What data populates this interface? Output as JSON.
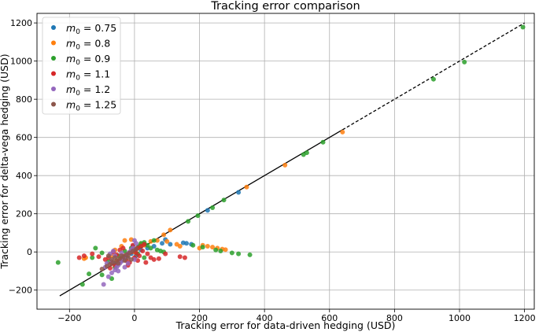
{
  "chart_data": {
    "type": "scatter",
    "title": "Tracking error comparison",
    "xlabel": "Tracking error for data-driven hedging (USD)",
    "ylabel": "Tracking error for delta-vega hedging (USD)",
    "xlim": [
      -300,
      1230
    ],
    "ylim": [
      -300,
      1250
    ],
    "xticks": [
      -200,
      0,
      200,
      400,
      600,
      800,
      1000,
      1200
    ],
    "yticks": [
      -200,
      0,
      200,
      400,
      600,
      800,
      1000,
      1200
    ],
    "grid": true,
    "legend_position": "top-left",
    "reference_line": {
      "x": [
        -230,
        1200
      ],
      "y": [
        -230,
        1200
      ],
      "style_solid_until": 640
    },
    "series": [
      {
        "name": "m0 = 0.75",
        "legend_sym": "m",
        "legend_sub": "0",
        "legend_val": "0.75",
        "color": "#1f77b4",
        "points": [
          [
            320,
            312
          ],
          [
            225,
            218
          ],
          [
            150,
            48
          ],
          [
            160,
            45
          ],
          [
            175,
            40
          ],
          [
            95,
            65
          ],
          [
            60,
            30
          ],
          [
            40,
            20
          ],
          [
            20,
            10
          ],
          [
            0,
            5
          ],
          [
            -10,
            -10
          ],
          [
            -20,
            -20
          ],
          [
            -30,
            -25
          ],
          [
            -40,
            -40
          ],
          [
            -50,
            -55
          ],
          [
            -60,
            -60
          ],
          [
            10,
            25
          ],
          [
            30,
            40
          ],
          [
            -5,
            30
          ],
          [
            5,
            -20
          ],
          [
            85,
            45
          ],
          [
            110,
            40
          ]
        ]
      },
      {
        "name": "m0 = 0.8",
        "legend_sym": "m",
        "legend_sub": "0",
        "legend_val": "0.8",
        "color": "#ff7f0e",
        "points": [
          [
            640,
            628
          ],
          [
            463,
            455
          ],
          [
            345,
            340
          ],
          [
            110,
            115
          ],
          [
            90,
            90
          ],
          [
            70,
            60
          ],
          [
            50,
            55
          ],
          [
            30,
            35
          ],
          [
            20,
            40
          ],
          [
            10,
            20
          ],
          [
            0,
            0
          ],
          [
            -20,
            -15
          ],
          [
            -30,
            -30
          ],
          [
            -45,
            -40
          ],
          [
            -55,
            -45
          ],
          [
            -150,
            -30
          ],
          [
            -155,
            -35
          ],
          [
            -60,
            10
          ],
          [
            -30,
            60
          ],
          [
            -10,
            65
          ],
          [
            200,
            20
          ],
          [
            210,
            35
          ],
          [
            225,
            30
          ],
          [
            240,
            25
          ],
          [
            255,
            20
          ],
          [
            270,
            15
          ],
          [
            280,
            12
          ],
          [
            130,
            40
          ],
          [
            140,
            30
          ],
          [
            100,
            55
          ],
          [
            -40,
            30
          ],
          [
            -70,
            -20
          ]
        ]
      },
      {
        "name": "m0 = 0.9",
        "legend_sym": "m",
        "legend_sub": "0",
        "legend_val": "0.9",
        "color": "#2ca02c",
        "points": [
          [
            1195,
            1178
          ],
          [
            1015,
            995
          ],
          [
            920,
            905
          ],
          [
            580,
            575
          ],
          [
            530,
            520
          ],
          [
            520,
            510
          ],
          [
            275,
            272
          ],
          [
            240,
            232
          ],
          [
            195,
            190
          ],
          [
            165,
            160
          ],
          [
            -235,
            -55
          ],
          [
            -160,
            -170
          ],
          [
            -140,
            -115
          ],
          [
            -130,
            -30
          ],
          [
            -120,
            20
          ],
          [
            -100,
            -5
          ],
          [
            -80,
            -50
          ],
          [
            -60,
            -80
          ],
          [
            -40,
            -45
          ],
          [
            -20,
            -10
          ],
          [
            0,
            10
          ],
          [
            15,
            30
          ],
          [
            30,
            50
          ],
          [
            40,
            35
          ],
          [
            50,
            20
          ],
          [
            70,
            10
          ],
          [
            80,
            5
          ],
          [
            90,
            0
          ],
          [
            30,
            -30
          ],
          [
            10,
            -10
          ],
          [
            -10,
            20
          ],
          [
            -30,
            5
          ],
          [
            -50,
            -20
          ],
          [
            20,
            45
          ],
          [
            60,
            60
          ],
          [
            300,
            -5
          ],
          [
            320,
            -10
          ],
          [
            355,
            -15
          ],
          [
            210,
            25
          ],
          [
            250,
            10
          ],
          [
            265,
            5
          ],
          [
            180,
            35
          ],
          [
            -100,
            -120
          ],
          [
            -70,
            -140
          ]
        ]
      },
      {
        "name": "m0 = 1.1",
        "legend_sym": "m",
        "legend_sub": "0",
        "legend_val": "1.1",
        "color": "#d62728",
        "points": [
          [
            -170,
            -30
          ],
          [
            -155,
            -20
          ],
          [
            -130,
            -10
          ],
          [
            -110,
            -25
          ],
          [
            -90,
            -40
          ],
          [
            -80,
            -30
          ],
          [
            -70,
            -60
          ],
          [
            -60,
            -70
          ],
          [
            -50,
            -50
          ],
          [
            -40,
            -35
          ],
          [
            -30,
            -20
          ],
          [
            -20,
            -10
          ],
          [
            -10,
            0
          ],
          [
            0,
            10
          ],
          [
            10,
            20
          ],
          [
            20,
            30
          ],
          [
            30,
            40
          ],
          [
            -45,
            10
          ],
          [
            -25,
            -45
          ],
          [
            -15,
            -55
          ],
          [
            0,
            -30
          ],
          [
            15,
            -20
          ],
          [
            25,
            5
          ],
          [
            40,
            -10
          ],
          [
            50,
            -30
          ],
          [
            60,
            -40
          ],
          [
            75,
            -35
          ],
          [
            95,
            -10
          ],
          [
            140,
            -25
          ],
          [
            155,
            -30
          ],
          [
            -35,
            20
          ],
          [
            -55,
            -15
          ],
          [
            -65,
            0
          ],
          [
            -5,
            35
          ],
          [
            10,
            -45
          ],
          [
            35,
            -55
          ],
          [
            -20,
            -70
          ],
          [
            -75,
            -85
          ],
          [
            5,
            -5
          ]
        ]
      },
      {
        "name": "m0 = 1.2",
        "legend_sym": "m",
        "legend_sub": "0",
        "legend_val": "1.2",
        "color": "#9467bd",
        "points": [
          [
            -95,
            -170
          ],
          [
            -80,
            -130
          ],
          [
            -70,
            -110
          ],
          [
            -60,
            -95
          ],
          [
            -55,
            -80
          ],
          [
            -50,
            -70
          ],
          [
            -45,
            -60
          ],
          [
            -40,
            -50
          ],
          [
            -35,
            -40
          ],
          [
            -30,
            -30
          ],
          [
            -25,
            -20
          ],
          [
            -20,
            -10
          ],
          [
            -15,
            0
          ],
          [
            -10,
            10
          ],
          [
            -5,
            20
          ],
          [
            -60,
            -20
          ],
          [
            -40,
            -5
          ],
          [
            -70,
            -50
          ],
          [
            -85,
            -60
          ],
          [
            -50,
            -100
          ],
          [
            -30,
            -80
          ],
          [
            -20,
            -60
          ],
          [
            0,
            -40
          ],
          [
            -65,
            5
          ],
          [
            -75,
            -10
          ],
          [
            -90,
            -80
          ],
          [
            0,
            60
          ],
          [
            5,
            45
          ]
        ]
      },
      {
        "name": "m0 = 1.25",
        "legend_sym": "m",
        "legend_sub": "0",
        "legend_val": "1.25",
        "color": "#8c564b",
        "points": [
          [
            -100,
            -90
          ],
          [
            -85,
            -75
          ],
          [
            -75,
            -65
          ],
          [
            -65,
            -55
          ],
          [
            -55,
            -45
          ],
          [
            -45,
            -35
          ],
          [
            -35,
            -25
          ],
          [
            -25,
            -15
          ],
          [
            -15,
            -5
          ],
          [
            -5,
            5
          ],
          [
            5,
            15
          ],
          [
            -60,
            -30
          ],
          [
            -40,
            -20
          ],
          [
            -20,
            -30
          ],
          [
            -50,
            -60
          ],
          [
            -30,
            -45
          ],
          [
            -70,
            -40
          ],
          [
            -80,
            -20
          ],
          [
            -10,
            -40
          ]
        ]
      }
    ]
  }
}
